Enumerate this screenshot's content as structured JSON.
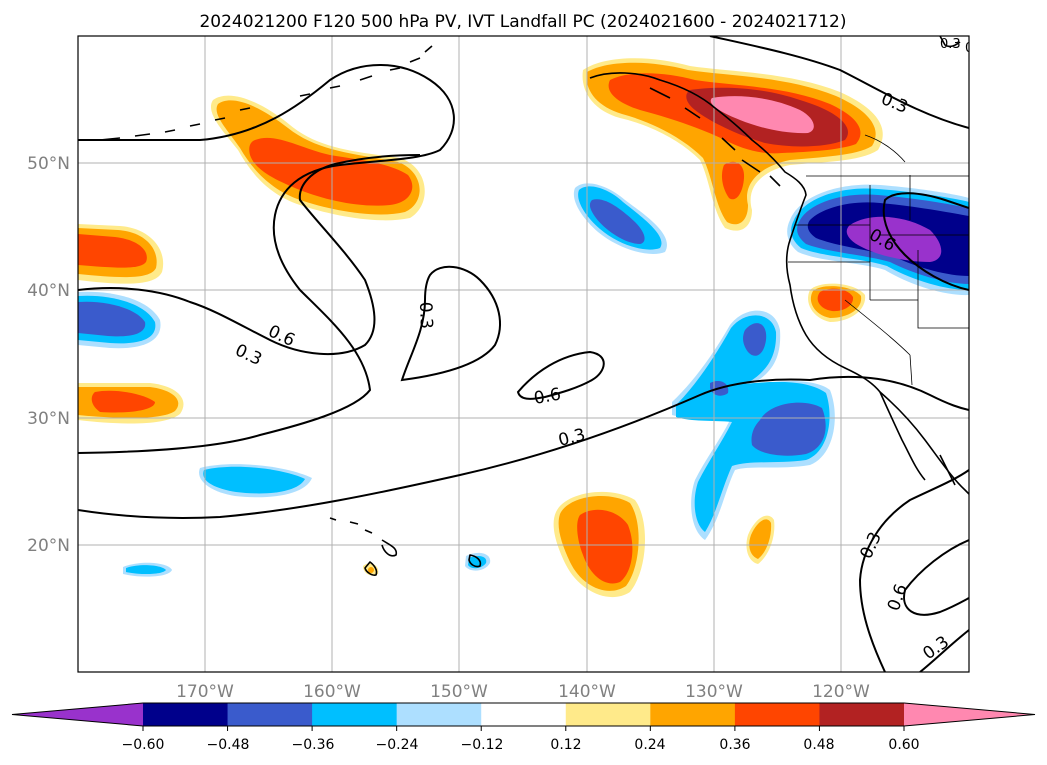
{
  "title": "2024021200 F120 500 hPa PV, IVT Landfall PC (2024021600 - 2024021712)",
  "map": {
    "lat_labels": [
      "50°N",
      "40°N",
      "30°N",
      "20°N"
    ],
    "lon_labels": [
      "170°W",
      "160°W",
      "150°W",
      "140°W",
      "130°W",
      "120°W"
    ],
    "contour_labels": [
      "0.3",
      "0.6",
      "0.3",
      "0.3",
      "0.6",
      "0.3",
      "0.6",
      "0.3",
      "0.6",
      "0.3",
      "0.6",
      "0.3"
    ],
    "colors": {
      "c_m060_under": "#9932cc",
      "c_m060_m048": "#00008b",
      "c_m048_m036": "#3a5bcc",
      "c_m036_m024": "#00bfff",
      "c_m024_m012": "#addfff",
      "c_m012_012": "#ffffff",
      "c_012_024": "#ffea8a",
      "c_024_036": "#ffa500",
      "c_036_048": "#ff4500",
      "c_048_060": "#b22222",
      "c_060_over": "#ff88b0"
    }
  },
  "colorbar": {
    "ticks": [
      "−0.60",
      "−0.48",
      "−0.36",
      "−0.24",
      "−0.12",
      "0.12",
      "0.24",
      "0.36",
      "0.48",
      "0.60"
    ],
    "colors": [
      "#9932cc",
      "#00008b",
      "#3a5bcc",
      "#00bfff",
      "#addfff",
      "#ffffff",
      "#ffea8a",
      "#ffa500",
      "#ff4500",
      "#b22222",
      "#ff88b0"
    ]
  }
}
